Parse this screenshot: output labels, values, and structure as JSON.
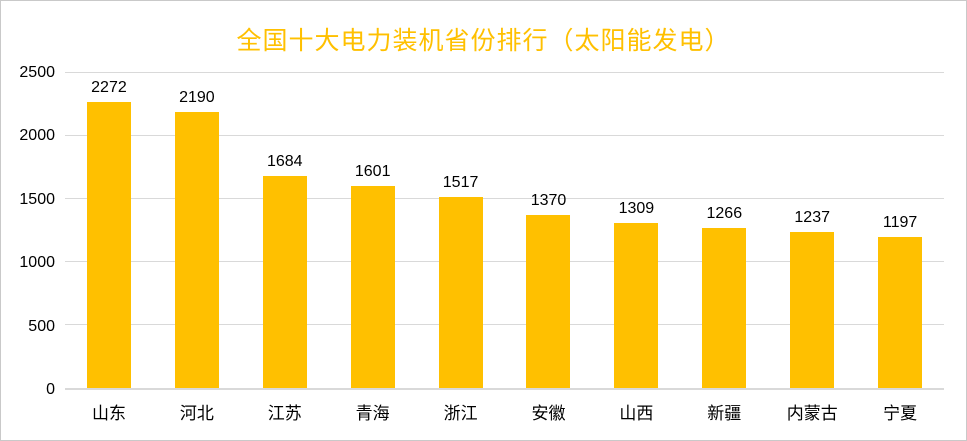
{
  "title": "全国十大电力装机省份排行（太阳能发电）",
  "colors": {
    "bar": "#FFC000",
    "title_text": "#FFC000",
    "gridline": "#d9d9d9",
    "axis_line": "#d9d9d9",
    "label_text": "#000000",
    "frame_border": "#c9c9c9",
    "background": "#ffffff"
  },
  "chart_data": {
    "type": "bar",
    "title": "全国十大电力装机省份排行（太阳能发电）",
    "categories": [
      "山东",
      "河北",
      "江苏",
      "青海",
      "浙江",
      "安徽",
      "山西",
      "新疆",
      "内蒙古",
      "宁夏"
    ],
    "values": [
      2272,
      2190,
      1684,
      1601,
      1517,
      1370,
      1309,
      1266,
      1237,
      1197
    ],
    "xlabel": "",
    "ylabel": "",
    "ylim": [
      0,
      2500
    ],
    "yticks": [
      0,
      500,
      1000,
      1500,
      2000,
      2500
    ],
    "grid": true,
    "legend": false,
    "data_labels": true
  }
}
